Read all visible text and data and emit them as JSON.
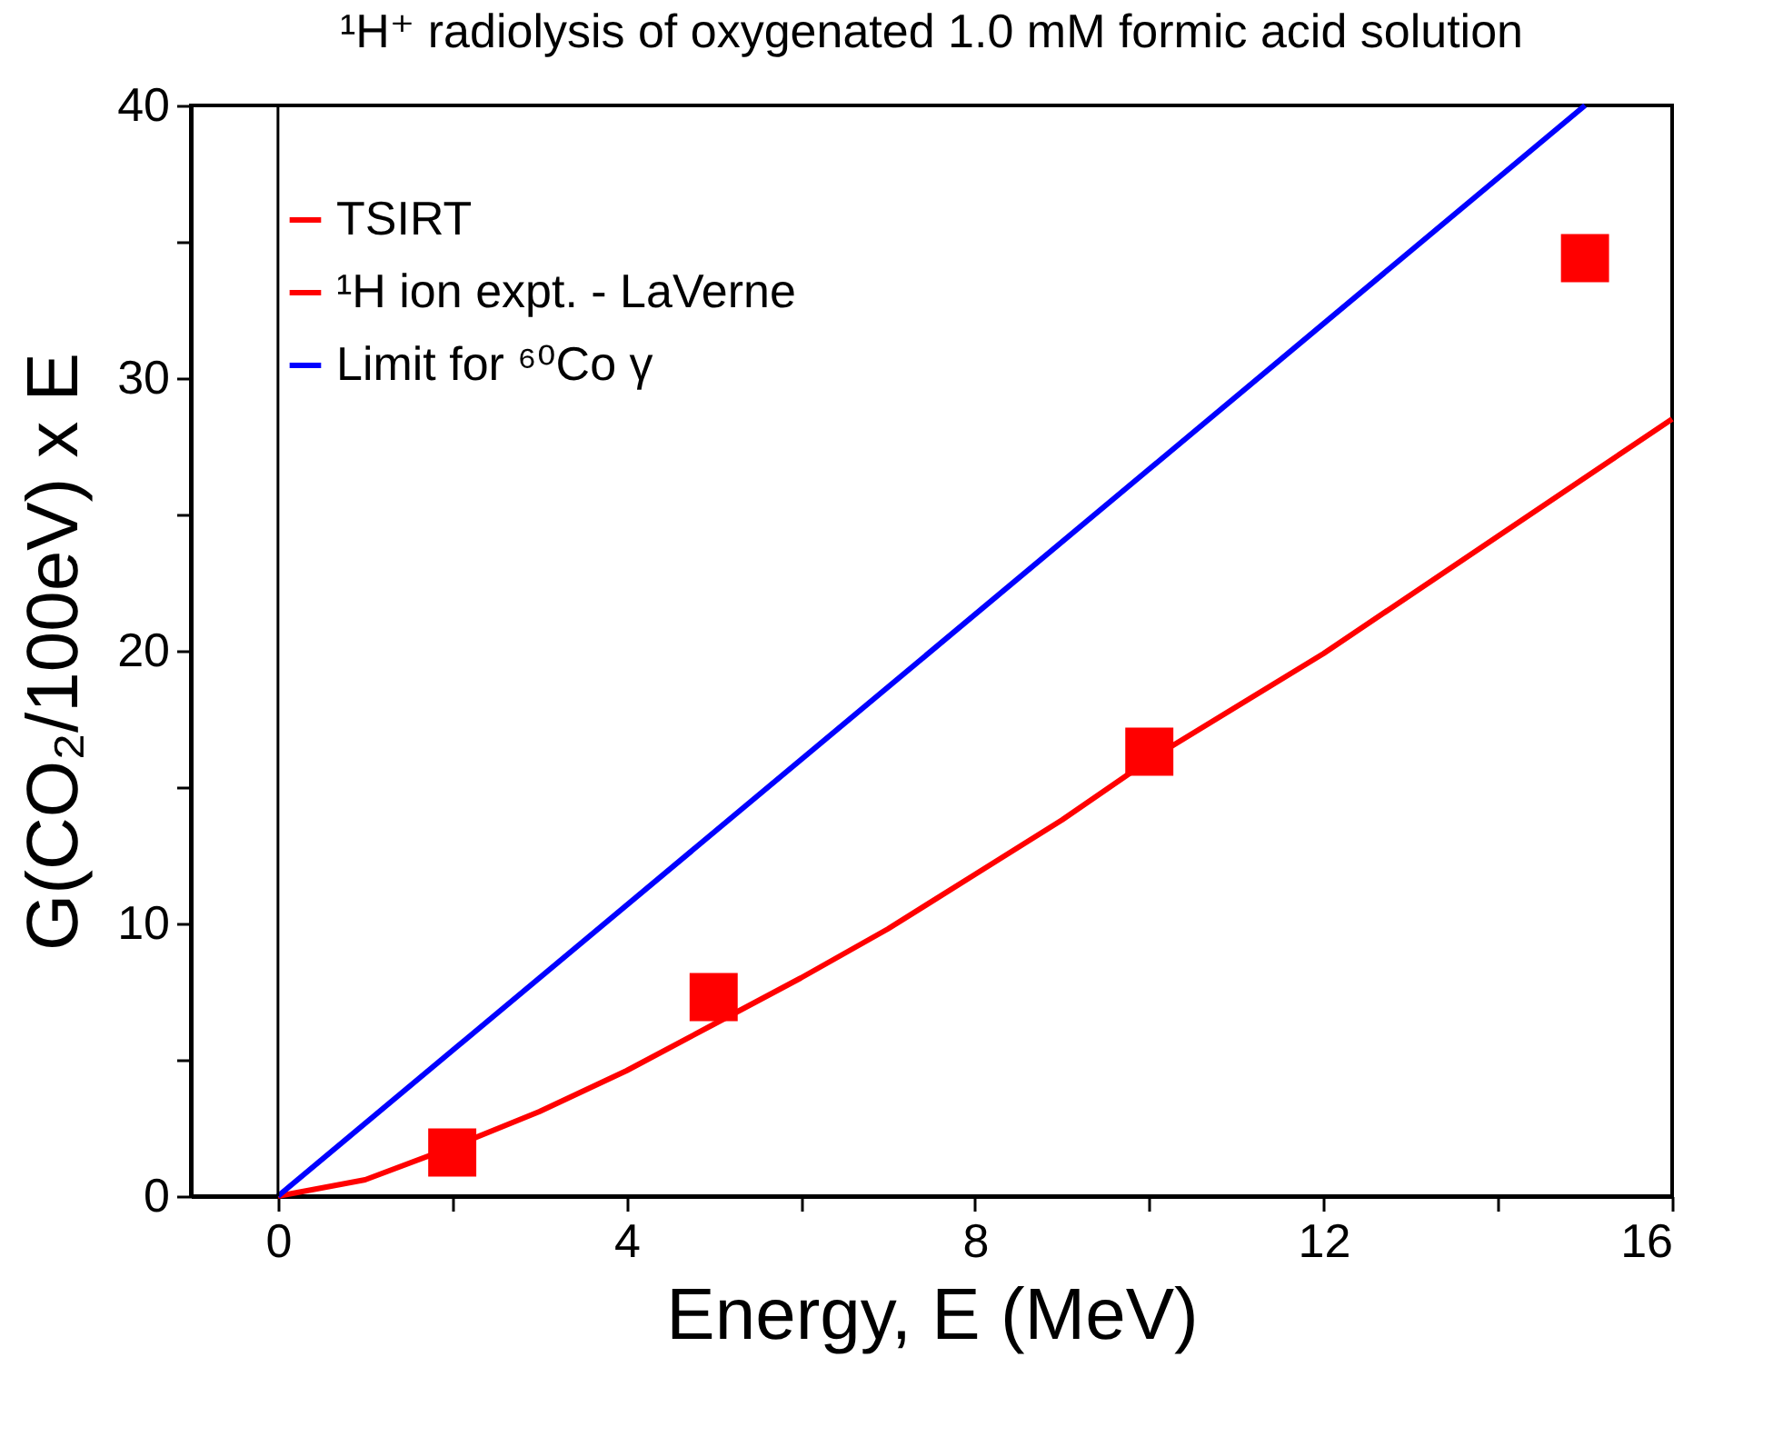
{
  "chart_data": {
    "type": "line",
    "title": "¹H⁺ radiolysis of oxygenated 1.0 mM formic acid solution",
    "xlabel": "Energy, E (MeV)",
    "ylabel": "G(CO₂/100eV) x E",
    "xlim": [
      -1,
      16
    ],
    "ylim": [
      0,
      40
    ],
    "xticks": [
      0,
      {
        "value": 2,
        "label": null
      },
      4,
      {
        "value": 6,
        "label": null
      },
      8,
      {
        "value": 10,
        "label": null
      },
      12,
      {
        "value": 14,
        "label": null
      },
      16
    ],
    "yticks": [
      0,
      {
        "value": 5,
        "label": null
      },
      10,
      {
        "value": 15,
        "label": null
      },
      20,
      {
        "value": 25,
        "label": null
      },
      30,
      {
        "value": 35,
        "label": null
      },
      40
    ],
    "grid": false,
    "legend": "top left",
    "ref_lines": [
      {
        "axis": "x",
        "value": 0,
        "color": "#000000"
      }
    ],
    "series": [
      {
        "name": "TSIRT",
        "color": "#ff0000",
        "x": [
          0,
          1,
          2,
          3,
          4,
          5,
          6,
          7,
          8,
          9,
          10,
          12,
          14,
          16
        ],
        "values": [
          0,
          0.6,
          1.8,
          3.1,
          4.6,
          6.3,
          8.0,
          9.8,
          11.8,
          13.8,
          16.0,
          19.9,
          24.2,
          28.5
        ]
      },
      {
        "name": "¹H ion expt. - LaVerne",
        "color": "#ff0000",
        "type": "scatter",
        "marker": "square",
        "x": [
          2,
          5,
          10,
          15
        ],
        "values": [
          1.6,
          7.3,
          16.3,
          34.4
        ]
      },
      {
        "name": "Limit for ⁶⁰Co γ",
        "color": "#0000ff",
        "x": [
          0,
          15
        ],
        "values": [
          0,
          40
        ]
      }
    ]
  }
}
